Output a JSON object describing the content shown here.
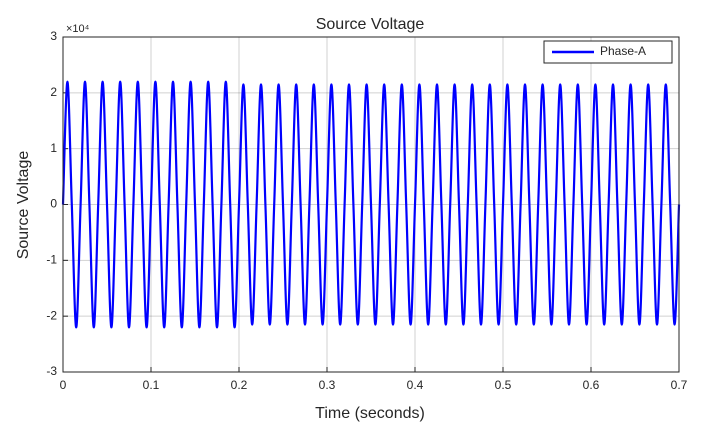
{
  "chart_data": {
    "type": "line",
    "title": "Source Voltage",
    "xlabel": "Time (seconds)",
    "ylabel": "Source Voltage",
    "y_exponent_label": "×10⁴",
    "x": [
      0,
      0.005,
      0.01,
      0.015,
      0.02,
      0.025,
      0.03,
      0.035,
      0.04,
      0.045,
      0.05,
      0.055,
      0.06,
      0.065,
      0.07,
      0.075,
      0.08,
      0.085,
      0.09,
      0.095,
      0.1,
      0.105,
      0.11,
      0.115,
      0.12,
      0.125,
      0.13,
      0.135,
      0.14,
      0.145,
      0.15,
      0.155,
      0.16,
      0.165,
      0.17,
      0.175,
      0.18,
      0.185,
      0.19,
      0.195,
      0.2,
      0.205,
      0.21,
      0.215,
      0.22,
      0.225,
      0.23,
      0.235,
      0.24,
      0.245,
      0.25,
      0.255,
      0.26,
      0.265,
      0.27,
      0.275,
      0.28,
      0.285,
      0.29,
      0.295,
      0.3,
      0.305,
      0.31,
      0.315,
      0.32,
      0.325,
      0.33,
      0.335,
      0.34,
      0.345,
      0.35,
      0.355,
      0.36,
      0.365,
      0.37,
      0.375,
      0.38,
      0.385,
      0.39,
      0.395,
      0.4,
      0.405,
      0.41,
      0.415,
      0.42,
      0.425,
      0.43,
      0.435,
      0.44,
      0.445,
      0.45,
      0.455,
      0.46,
      0.465,
      0.47,
      0.475,
      0.48,
      0.485,
      0.49,
      0.495,
      0.5,
      0.505,
      0.51,
      0.515,
      0.52,
      0.525,
      0.53,
      0.535,
      0.54,
      0.545,
      0.55,
      0.555,
      0.56,
      0.565,
      0.57,
      0.575,
      0.58,
      0.585,
      0.59,
      0.595,
      0.6,
      0.605,
      0.61,
      0.615,
      0.62,
      0.625,
      0.63,
      0.635,
      0.64,
      0.645,
      0.65,
      0.655,
      0.66,
      0.665,
      0.67,
      0.675,
      0.68,
      0.685,
      0.69,
      0.695,
      0.7
    ],
    "series": [
      {
        "name": "Phase-A",
        "color": "#0000ff",
        "values": [
          0,
          2.2,
          0,
          -2.2,
          0,
          2.2,
          0,
          -2.2,
          0,
          2.2,
          0,
          -2.2,
          0,
          2.2,
          0,
          -2.2,
          0,
          2.2,
          0,
          -2.2,
          0,
          2.2,
          0,
          -2.2,
          0,
          2.2,
          0,
          -2.2,
          0,
          2.2,
          0,
          -2.2,
          0,
          2.2,
          0,
          -2.2,
          0,
          2.2,
          0,
          -2.2,
          0,
          2.15,
          0,
          -2.15,
          0,
          2.15,
          0,
          -2.15,
          0,
          2.15,
          0,
          -2.15,
          0,
          2.15,
          0,
          -2.15,
          0,
          2.15,
          0,
          -2.15,
          0,
          2.15,
          0,
          -2.15,
          0,
          2.15,
          0,
          -2.15,
          0,
          2.15,
          0,
          -2.15,
          0,
          2.15,
          0,
          -2.15,
          0,
          2.15,
          0,
          -2.15,
          0,
          2.15,
          0,
          -2.15,
          0,
          2.15,
          0,
          -2.15,
          0,
          2.15,
          0,
          -2.15,
          0,
          2.15,
          0,
          -2.15,
          0,
          2.15,
          0,
          -2.15,
          0,
          2.15,
          0,
          -2.15,
          0,
          2.15,
          0,
          -2.15,
          0,
          2.15,
          0,
          -2.15,
          0,
          2.15,
          0,
          -2.15,
          0,
          2.15,
          0,
          -2.15,
          0,
          2.15,
          0,
          -2.15,
          0,
          2.15,
          0,
          -2.15,
          0,
          2.15,
          0,
          -2.15,
          0,
          2.15,
          0,
          -2.15,
          0,
          2.15,
          0,
          -2.15,
          0
        ]
      }
    ],
    "xlim": [
      0,
      0.7
    ],
    "xticks": [
      0,
      0.1,
      0.2,
      0.3,
      0.4,
      0.5,
      0.6,
      0.7
    ],
    "ylim": [
      -3,
      3
    ],
    "yticks": [
      -3,
      -2,
      -1,
      0,
      1,
      2,
      3
    ],
    "grid": true,
    "legend": "northeast"
  }
}
